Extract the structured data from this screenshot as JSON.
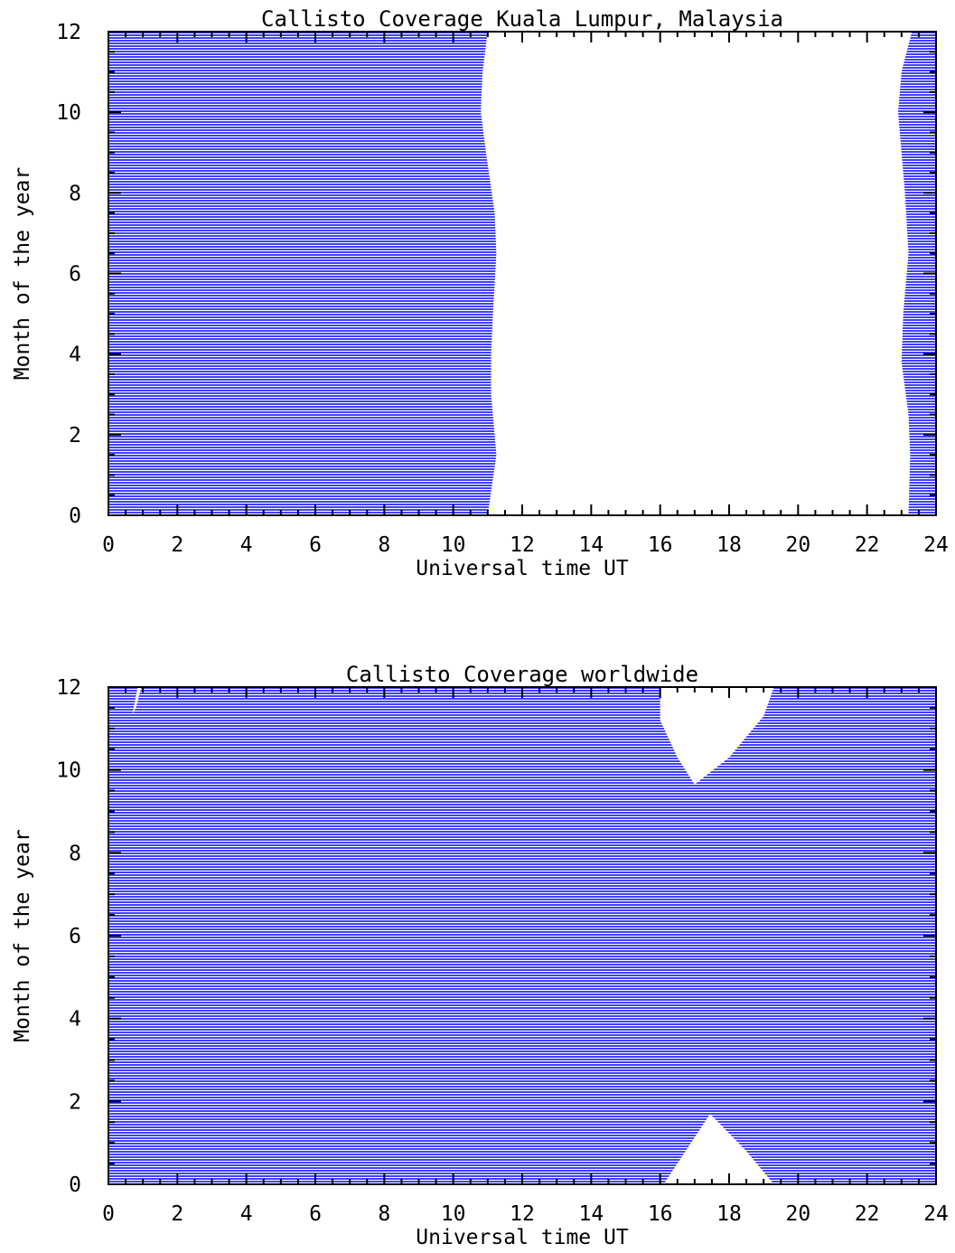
{
  "chart_data": [
    {
      "type": "area",
      "title": "Callisto Coverage Kuala Lumpur, Malaysia",
      "xlabel": "Universal time UT",
      "ylabel": "Month of the year",
      "xlim": [
        0,
        24
      ],
      "ylim": [
        0,
        12
      ],
      "xticks": [
        "0",
        "2",
        "4",
        "6",
        "8",
        "10",
        "12",
        "14",
        "16",
        "18",
        "20",
        "22",
        "24"
      ],
      "yticks": [
        "0",
        "2",
        "4",
        "6",
        "8",
        "10",
        "12"
      ],
      "fill_color": "#0000ff",
      "regions": [
        {
          "boundary": [
            [
              0,
              0
            ],
            [
              11.0,
              0
            ],
            [
              11.25,
              1.5
            ],
            [
              11.1,
              3
            ],
            [
              11.1,
              4
            ],
            [
              11.15,
              5
            ],
            [
              11.25,
              6.5
            ],
            [
              11.2,
              7.5
            ],
            [
              10.95,
              9
            ],
            [
              10.8,
              10
            ],
            [
              10.85,
              11
            ],
            [
              11.0,
              12
            ],
            [
              0,
              12
            ]
          ]
        },
        {
          "boundary": [
            [
              23.2,
              0
            ],
            [
              23.25,
              1.5
            ],
            [
              23.2,
              2.5
            ],
            [
              23.0,
              3.8
            ],
            [
              23.05,
              5
            ],
            [
              23.2,
              6.5
            ],
            [
              23.1,
              8
            ],
            [
              22.9,
              10
            ],
            [
              23.0,
              11
            ],
            [
              23.3,
              12
            ],
            [
              24,
              12
            ],
            [
              24,
              0
            ]
          ]
        }
      ]
    },
    {
      "type": "area",
      "title": "Callisto Coverage worldwide",
      "xlabel": "Universal time UT",
      "ylabel": "Month of the year",
      "xlim": [
        0,
        24
      ],
      "ylim": [
        0,
        12
      ],
      "xticks": [
        "0",
        "2",
        "4",
        "6",
        "8",
        "10",
        "12",
        "14",
        "16",
        "18",
        "20",
        "22",
        "24"
      ],
      "yticks": [
        "0",
        "2",
        "4",
        "6",
        "8",
        "10",
        "12"
      ],
      "fill_color": "#0000ff",
      "regions": [
        {
          "boundary": [
            [
              0,
              0
            ],
            [
              24,
              0
            ],
            [
              24,
              12
            ],
            [
              0,
              12
            ]
          ]
        }
      ],
      "gaps": [
        {
          "boundary": [
            [
              16.1,
              0
            ],
            [
              17.45,
              1.7
            ],
            [
              18.5,
              0.8
            ],
            [
              19.3,
              0
            ]
          ]
        },
        {
          "boundary": [
            [
              16.0,
              12
            ],
            [
              16.0,
              11.2
            ],
            [
              16.5,
              10.3
            ],
            [
              17.0,
              9.65
            ],
            [
              18.0,
              10.3
            ],
            [
              19.0,
              11.3
            ],
            [
              19.3,
              12
            ]
          ]
        },
        {
          "boundary": [
            [
              0.85,
              12
            ],
            [
              0.7,
              11.35
            ],
            [
              0.8,
              11.5
            ],
            [
              0.95,
              12
            ]
          ]
        }
      ]
    }
  ]
}
